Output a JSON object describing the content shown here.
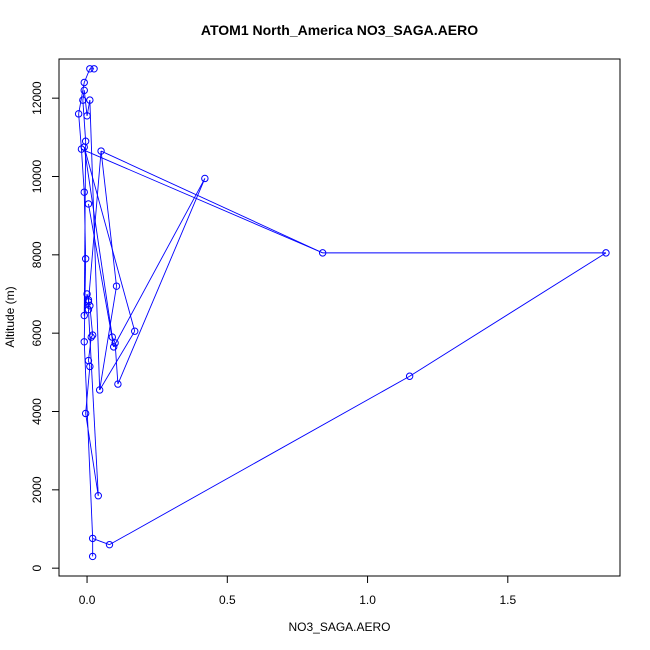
{
  "chart_data": {
    "type": "line",
    "title": "ATOM1 North_America NO3_SAGA.AERO",
    "xlabel": "NO3_SAGA.AERO",
    "ylabel": "Altitude (m)",
    "xlim": [
      -0.1,
      1.9
    ],
    "ylim": [
      -200,
      13000
    ],
    "x_ticks": [
      0,
      0.5,
      1,
      1.5
    ],
    "x_tick_labels": [
      "0.0",
      "0.5",
      "1.0",
      "1.5"
    ],
    "y_ticks": [
      0,
      2000,
      4000,
      6000,
      8000,
      10000,
      12000
    ],
    "y_tick_labels": [
      "0",
      "2000",
      "4000",
      "6000",
      "8000",
      "10000",
      "12000"
    ],
    "grid": false,
    "legend": "none",
    "series": [
      {
        "color": "#0000ff",
        "marker": "open-circle",
        "points": [
          {
            "x": 0.02,
            "y": 300
          },
          {
            "x": 0.02,
            "y": 760
          },
          {
            "x": -0.01,
            "y": 5780
          },
          {
            "x": -0.005,
            "y": 7900
          },
          {
            "x": -0.01,
            "y": 9600
          },
          {
            "x": -0.02,
            "y": 10700
          },
          {
            "x": -0.03,
            "y": 11600
          },
          {
            "x": -0.01,
            "y": 12400
          },
          {
            "x": 0.01,
            "y": 12750
          },
          {
            "x": 0.025,
            "y": 12750
          },
          {
            "x": 0.01,
            "y": 11950
          },
          {
            "x": 0.0,
            "y": 11550
          },
          {
            "x": -0.01,
            "y": 12200
          },
          {
            "x": -0.015,
            "y": 11950
          },
          {
            "x": -0.005,
            "y": 10900
          },
          {
            "x": -0.01,
            "y": 6450
          },
          {
            "x": 0.0,
            "y": 7000
          },
          {
            "x": 0.005,
            "y": 6850
          },
          {
            "x": 0.01,
            "y": 6700
          },
          {
            "x": 0.02,
            "y": 5950
          },
          {
            "x": 0.015,
            "y": 5900
          },
          {
            "x": 0.005,
            "y": 5300
          },
          {
            "x": 0.01,
            "y": 5150
          },
          {
            "x": -0.005,
            "y": 3950
          },
          {
            "x": 0.04,
            "y": 1850
          },
          {
            "x": 0.005,
            "y": 6600
          },
          {
            "x": 0.005,
            "y": 6800
          },
          {
            "x": 0.05,
            "y": 10650
          },
          {
            "x": 0.105,
            "y": 7200
          },
          {
            "x": 0.045,
            "y": 4550
          },
          {
            "x": 0.17,
            "y": 6050
          },
          {
            "x": -0.01,
            "y": 10750
          },
          {
            "x": 0.09,
            "y": 5900
          },
          {
            "x": 0.1,
            "y": 5750
          },
          {
            "x": 0.11,
            "y": 4700
          },
          {
            "x": 0.42,
            "y": 9950
          },
          {
            "x": 0.095,
            "y": 5650
          },
          {
            "x": 0.005,
            "y": 9300
          },
          {
            "x": 0.84,
            "y": 8050
          },
          {
            "x": 1.85,
            "y": 8050
          },
          {
            "x": 1.15,
            "y": 4900
          },
          {
            "x": 0.08,
            "y": 600
          }
        ],
        "lines": [
          [
            0,
            1
          ],
          [
            1,
            2
          ],
          [
            2,
            3
          ],
          [
            3,
            4
          ],
          [
            4,
            5
          ],
          [
            5,
            6
          ],
          [
            6,
            7
          ],
          [
            7,
            8
          ],
          [
            8,
            9
          ],
          [
            10,
            11
          ],
          [
            11,
            12
          ],
          [
            12,
            13
          ],
          [
            13,
            14
          ],
          [
            14,
            15
          ],
          [
            15,
            16
          ],
          [
            16,
            17
          ],
          [
            17,
            18
          ],
          [
            18,
            19
          ],
          [
            19,
            20
          ],
          [
            20,
            21
          ],
          [
            21,
            22
          ],
          [
            22,
            23
          ],
          [
            23,
            24
          ],
          [
            24,
            25
          ],
          [
            25,
            26
          ],
          [
            10,
            29
          ],
          [
            26,
            27
          ],
          [
            27,
            28
          ],
          [
            28,
            29
          ],
          [
            29,
            30
          ],
          [
            30,
            31
          ],
          [
            31,
            32
          ],
          [
            32,
            33
          ],
          [
            33,
            34
          ],
          [
            34,
            35
          ],
          [
            35,
            36
          ],
          [
            36,
            37
          ],
          [
            5,
            38
          ],
          [
            38,
            39
          ],
          [
            39,
            40
          ],
          [
            40,
            41
          ],
          [
            41,
            1
          ],
          [
            27,
            38
          ]
        ]
      }
    ]
  }
}
